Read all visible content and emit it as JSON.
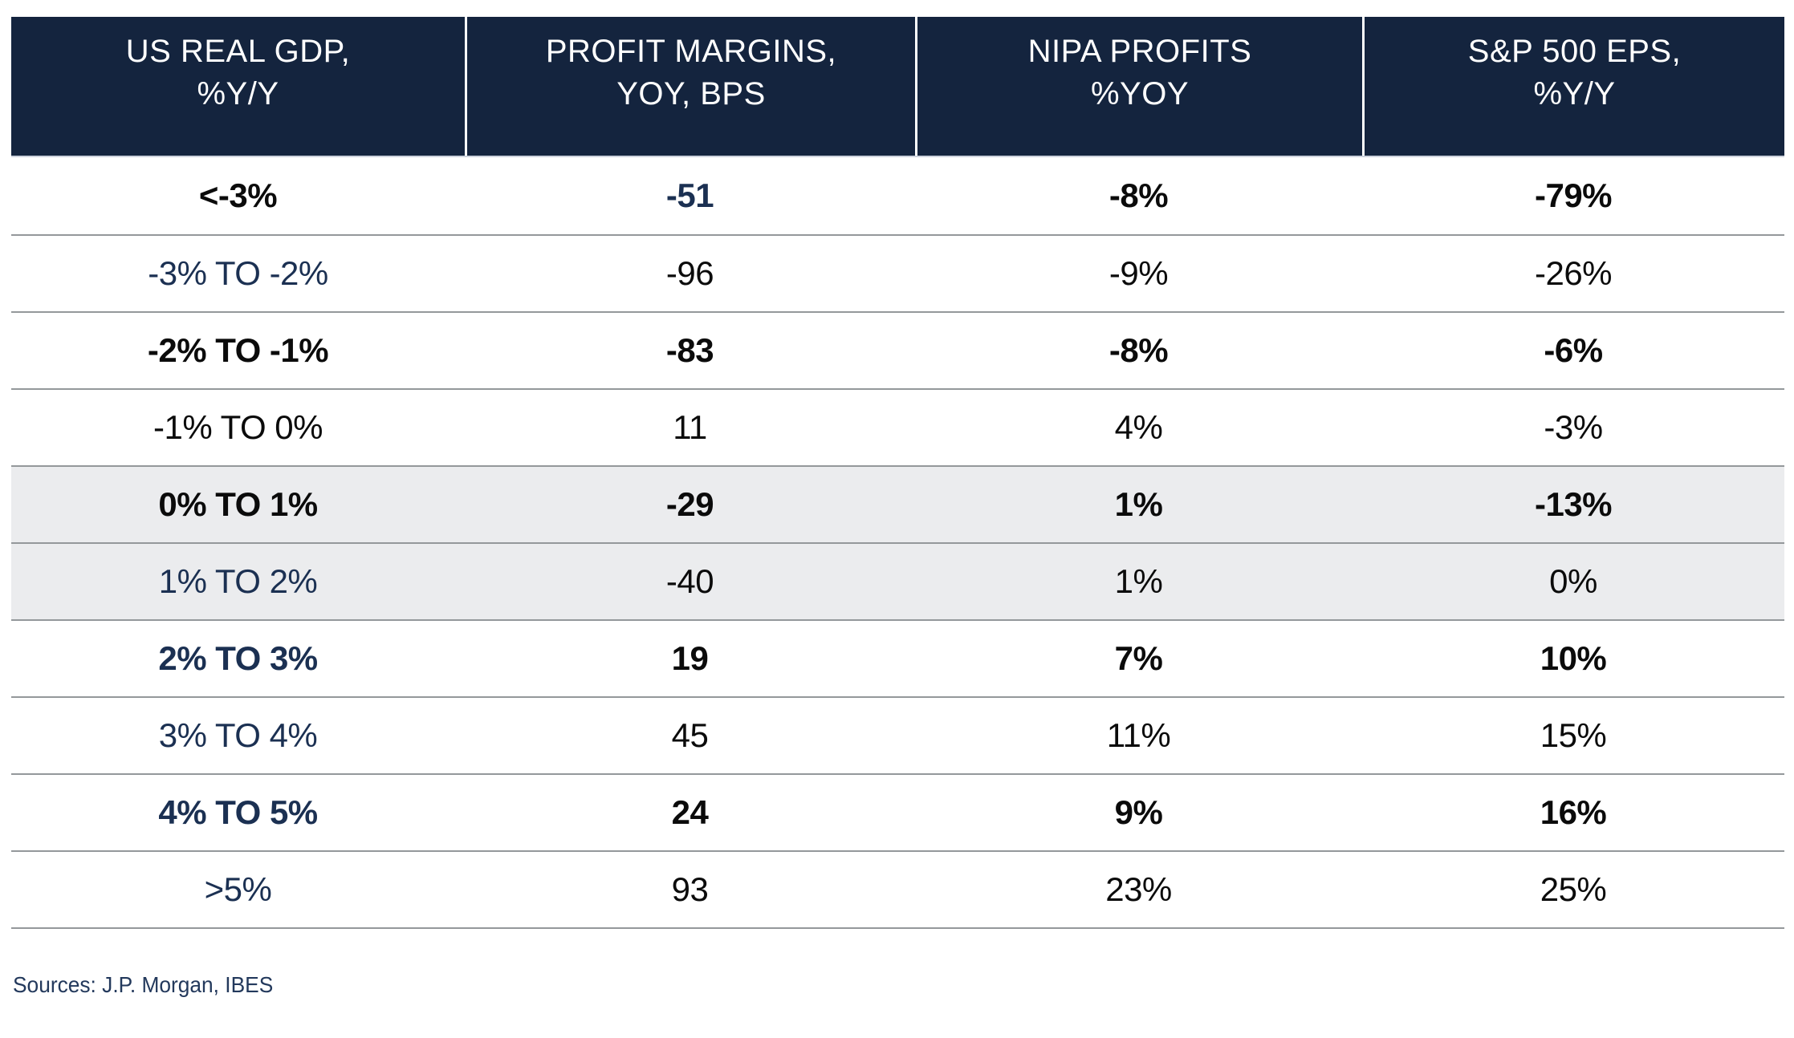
{
  "colors": {
    "header_bg": "#14243e",
    "header_text": "#ffffff",
    "navy_text": "#1b3052",
    "black_text": "#0b0b0b",
    "row_highlight_bg": "#ebecee",
    "separator": "#94989b"
  },
  "table": {
    "headers": [
      {
        "line1": "US REAL GDP,",
        "line2": "%Y/Y"
      },
      {
        "line1": "PROFIT MARGINS,",
        "line2": "YOY, BPS"
      },
      {
        "line1": "NIPA PROFITS",
        "line2": "%YOY"
      },
      {
        "line1": "S&P 500 EPS,",
        "line2": "%Y/Y"
      }
    ]
  },
  "chart_data": {
    "type": "table",
    "title": "",
    "columns": [
      "US REAL GDP, %Y/Y",
      "PROFIT MARGINS, YOY, BPS",
      "NIPA PROFITS %YOY",
      "S&P 500 EPS, %Y/Y"
    ],
    "rows": [
      [
        "<-3%",
        "-51",
        "-8%",
        "-79%"
      ],
      [
        "-3% TO -2%",
        "-96",
        "-9%",
        "-26%"
      ],
      [
        "-2% TO -1%",
        "-83",
        "-8%",
        "-6%"
      ],
      [
        "-1% TO 0%",
        "11",
        "4%",
        "-3%"
      ],
      [
        "0% TO 1%",
        "-29",
        "1%",
        "-13%"
      ],
      [
        "1% TO 2%",
        "-40",
        "1%",
        "0%"
      ],
      [
        "2% TO 3%",
        "19",
        "7%",
        "10%"
      ],
      [
        "3% TO 4%",
        "45",
        "11%",
        "15%"
      ],
      [
        "4% TO 5%",
        "24",
        "9%",
        "16%"
      ],
      [
        ">5%",
        "93",
        "23%",
        "25%"
      ]
    ]
  },
  "footer": {
    "sources": "Sources: J.P. Morgan, IBES"
  }
}
